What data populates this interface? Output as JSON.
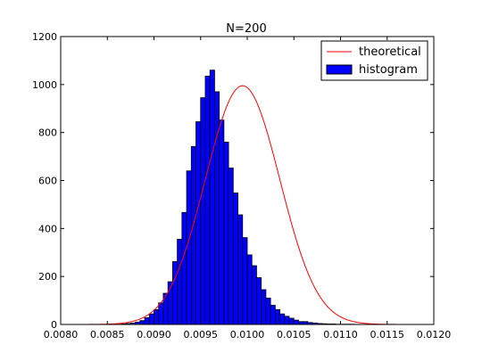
{
  "chart_data": {
    "type": "bar",
    "title": "N=200",
    "xlabel": "",
    "ylabel": "",
    "xlim": [
      0.008,
      0.012
    ],
    "ylim": [
      0,
      1200
    ],
    "xticks": [
      0.008,
      0.0085,
      0.009,
      0.0095,
      0.01,
      0.0105,
      0.011,
      0.0115,
      0.012
    ],
    "xtick_labels": [
      "0.0080",
      "0.0085",
      "0.0090",
      "0.0095",
      "0.0100",
      "0.0105",
      "0.0110",
      "0.0115",
      "0.0120"
    ],
    "yticks": [
      0,
      200,
      400,
      600,
      800,
      1000,
      1200
    ],
    "ytick_labels": [
      "0",
      "200",
      "400",
      "600",
      "800",
      "1000",
      "1200"
    ],
    "grid": false,
    "legend_position": "top-right",
    "bin_edges": [
      0.00865,
      0.0087,
      0.00875,
      0.0088,
      0.00885,
      0.0089,
      0.00895,
      0.009,
      0.00905,
      0.0091,
      0.00915,
      0.0092,
      0.00925,
      0.0093,
      0.00935,
      0.0094,
      0.00945,
      0.0095,
      0.00955,
      0.0096,
      0.00965,
      0.0097,
      0.00975,
      0.0098,
      0.00985,
      0.0099,
      0.00995,
      0.01,
      0.01005,
      0.0101,
      0.01015,
      0.0102,
      0.01025,
      0.0103,
      0.01035,
      0.0104,
      0.01045,
      0.0105,
      0.01055,
      0.0106,
      0.01065,
      0.0107,
      0.01075,
      0.0108,
      0.01085,
      0.0109,
      0.01095,
      0.011,
      0.01105,
      0.0111,
      0.01115,
      0.0112,
      0.01125,
      0.0113,
      0.01135
    ],
    "series": [
      {
        "name": "histogram",
        "kind": "histogram",
        "color": "#0000ff",
        "values": [
          2,
          4,
          6,
          10,
          16,
          28,
          44,
          62,
          90,
          130,
          178,
          262,
          355,
          467,
          640,
          742,
          845,
          945,
          1035,
          1060,
          970,
          852,
          760,
          652,
          548,
          457,
          362,
          290,
          245,
          195,
          145,
          110,
          80,
          62,
          44,
          34,
          26,
          18,
          12,
          12,
          8,
          6,
          4,
          3,
          2,
          2,
          1,
          1,
          1,
          1,
          0,
          0,
          0,
          0
        ]
      },
      {
        "name": "theoretical",
        "kind": "line",
        "color": "#ff0000",
        "mean": 0.00995,
        "std": 0.0004,
        "peak": 995
      }
    ]
  }
}
